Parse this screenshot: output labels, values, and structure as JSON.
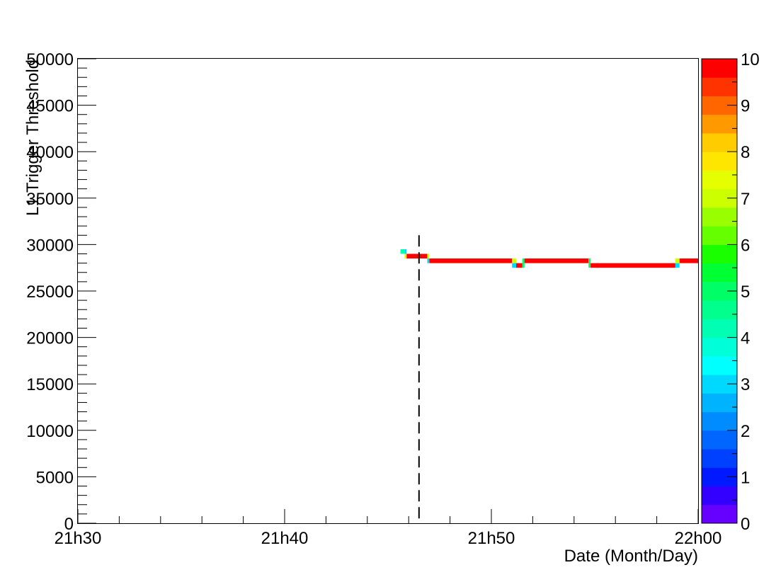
{
  "chart_data": {
    "type": "heatmap",
    "title": "",
    "xlabel": "Date (Month/Day)",
    "ylabel": "L1 Trigger Threshold",
    "x_tick_labels": [
      "21h30",
      "21h40",
      "21h50",
      "22h00"
    ],
    "x_ticks_min": [
      0,
      10,
      20,
      30
    ],
    "xlim_min": [
      0,
      30
    ],
    "y_tick_labels": [
      "0",
      "5000",
      "10000",
      "15000",
      "20000",
      "25000",
      "30000",
      "35000",
      "40000",
      "45000",
      "50000"
    ],
    "y_ticks": [
      0,
      5000,
      10000,
      15000,
      20000,
      25000,
      30000,
      35000,
      40000,
      45000,
      50000
    ],
    "ylim": [
      0,
      50000
    ],
    "z_tick_labels": [
      "0",
      "1",
      "2",
      "3",
      "4",
      "5",
      "6",
      "7",
      "8",
      "9",
      "10"
    ],
    "zlim": [
      0,
      10
    ],
    "palette": [
      "#6600ff",
      "#3300ff",
      "#0019ff",
      "#0040ff",
      "#0066ff",
      "#008cff",
      "#00b3ff",
      "#00d9ff",
      "#00ffff",
      "#00ffd9",
      "#00ffb3",
      "#00ff8c",
      "#00ff66",
      "#00ff33",
      "#1aff00",
      "#66ff00",
      "#99ff00",
      "#ccff00",
      "#e6ff00",
      "#ffe600",
      "#ffcc00",
      "#ff9900",
      "#ff6600",
      "#ff3300",
      "#ff0000"
    ],
    "marker_line": {
      "x_min": 16.5,
      "y_from": 0,
      "y_to": 31000,
      "style": "dashed"
    },
    "cells": [
      {
        "x0": 15.6,
        "x1": 15.8,
        "y0": 29000,
        "y1": 29500,
        "z": 4
      },
      {
        "x0": 15.8,
        "x1": 15.9,
        "y0": 29000,
        "y1": 29500,
        "z": 3
      },
      {
        "x0": 15.8,
        "x1": 15.9,
        "y0": 28500,
        "y1": 29000,
        "z": 7
      },
      {
        "x0": 15.9,
        "x1": 16.9,
        "y0": 28500,
        "y1": 29000,
        "z": 10
      },
      {
        "x0": 16.9,
        "x1": 17.0,
        "y0": 28500,
        "y1": 29000,
        "z": 7
      },
      {
        "x0": 16.9,
        "x1": 17.0,
        "y0": 28000,
        "y1": 28500,
        "z": 3
      },
      {
        "x0": 17.0,
        "x1": 21.0,
        "y0": 28000,
        "y1": 28500,
        "z": 10
      },
      {
        "x0": 21.0,
        "x1": 21.2,
        "y0": 28000,
        "y1": 28500,
        "z": 7
      },
      {
        "x0": 21.0,
        "x1": 21.2,
        "y0": 27500,
        "y1": 28000,
        "z": 3
      },
      {
        "x0": 21.2,
        "x1": 21.5,
        "y0": 27500,
        "y1": 28000,
        "z": 10
      },
      {
        "x0": 21.5,
        "x1": 21.6,
        "y0": 27500,
        "y1": 28500,
        "z": 5
      },
      {
        "x0": 21.6,
        "x1": 24.7,
        "y0": 28000,
        "y1": 28500,
        "z": 10
      },
      {
        "x0": 24.7,
        "x1": 24.8,
        "y0": 27500,
        "y1": 28500,
        "z": 5
      },
      {
        "x0": 24.8,
        "x1": 28.9,
        "y0": 27500,
        "y1": 28000,
        "z": 10
      },
      {
        "x0": 28.9,
        "x1": 29.1,
        "y0": 27500,
        "y1": 28000,
        "z": 3
      },
      {
        "x0": 28.9,
        "x1": 29.1,
        "y0": 28000,
        "y1": 28500,
        "z": 7
      },
      {
        "x0": 29.1,
        "x1": 30.0,
        "y0": 28000,
        "y1": 28500,
        "z": 10
      }
    ]
  }
}
